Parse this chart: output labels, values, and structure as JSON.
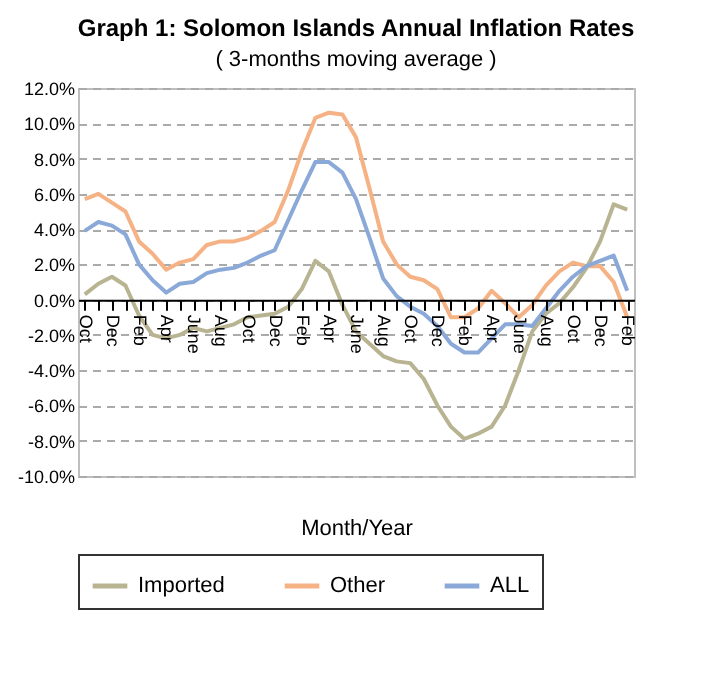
{
  "chart_data": {
    "type": "line",
    "title": "Graph 1:  Solomon Islands Annual Inflation Rates",
    "subtitle": "( 3-months moving average )",
    "xlabel": "Month/Year",
    "categories": [
      "Oct",
      null,
      "Dec",
      null,
      "Feb",
      null,
      "Apr",
      null,
      "June",
      null,
      "Aug",
      null,
      "Oct",
      null,
      "Dec",
      null,
      "Feb",
      null,
      "Apr",
      null,
      "June",
      null,
      "Aug",
      null,
      "Oct",
      null,
      "Dec",
      null,
      "Feb",
      null,
      "Apr",
      null,
      "June",
      null,
      "Aug",
      null,
      "Oct",
      null,
      "Dec",
      null,
      "Feb"
    ],
    "series": [
      {
        "name": "Imported",
        "color": "#b8b391",
        "values": [
          0.3,
          0.9,
          1.3,
          0.8,
          -0.9,
          -2.0,
          -2.2,
          -2.0,
          -1.6,
          -1.8,
          -1.6,
          -1.4,
          -1.0,
          -0.9,
          -0.8,
          -0.4,
          0.6,
          2.2,
          1.6,
          -0.3,
          -1.8,
          -2.5,
          -3.2,
          -3.5,
          -3.6,
          -4.5,
          -6.0,
          -7.2,
          -7.9,
          -7.6,
          -7.2,
          -6.0,
          -4.0,
          -1.8,
          -0.8,
          -0.2,
          0.7,
          1.8,
          3.3,
          5.4,
          5.1
        ]
      },
      {
        "name": "Other",
        "color": "#f5b284",
        "values": [
          5.7,
          6.0,
          5.5,
          5.0,
          3.3,
          2.6,
          1.7,
          2.1,
          2.3,
          3.1,
          3.3,
          3.3,
          3.5,
          3.9,
          4.4,
          6.2,
          8.4,
          10.3,
          10.6,
          10.5,
          9.2,
          6.3,
          3.3,
          2.0,
          1.3,
          1.1,
          0.6,
          -1.0,
          -1.0,
          -0.5,
          0.5,
          -0.2,
          -1.0,
          -0.3,
          0.8,
          1.6,
          2.1,
          1.9,
          1.9,
          1.0,
          -1.0
        ]
      },
      {
        "name": "ALL",
        "color": "#8aa9d8",
        "values": [
          3.9,
          4.4,
          4.2,
          3.7,
          2.0,
          1.1,
          0.4,
          0.9,
          1.0,
          1.5,
          1.7,
          1.8,
          2.1,
          2.5,
          2.8,
          4.5,
          6.2,
          7.8,
          7.8,
          7.2,
          5.7,
          3.5,
          1.2,
          0.2,
          -0.4,
          -0.8,
          -1.5,
          -2.5,
          -3.0,
          -3.0,
          -2.2,
          -1.4,
          -1.4,
          -1.5,
          -0.5,
          0.5,
          1.3,
          1.9,
          2.2,
          2.5,
          0.5
        ]
      }
    ],
    "ylim": [
      -10,
      12
    ],
    "yticks": [
      {
        "value": -10,
        "label": "-10.0%"
      },
      {
        "value": -8,
        "label": "-8.0%"
      },
      {
        "value": -6,
        "label": "-6.0%"
      },
      {
        "value": -4,
        "label": "-4.0%"
      },
      {
        "value": -2,
        "label": "-2.0%"
      },
      {
        "value": 0,
        "label": "0.0%"
      },
      {
        "value": 2,
        "label": "2.0%"
      },
      {
        "value": 4,
        "label": "4.0%"
      },
      {
        "value": 6,
        "label": "6.0%"
      },
      {
        "value": 8,
        "label": "8.0%"
      },
      {
        "value": 10,
        "label": "10.0%"
      },
      {
        "value": 12,
        "label": "12.0%"
      }
    ],
    "grid": "y",
    "legend": "bottom",
    "line_style": "solid",
    "marker": "none"
  }
}
